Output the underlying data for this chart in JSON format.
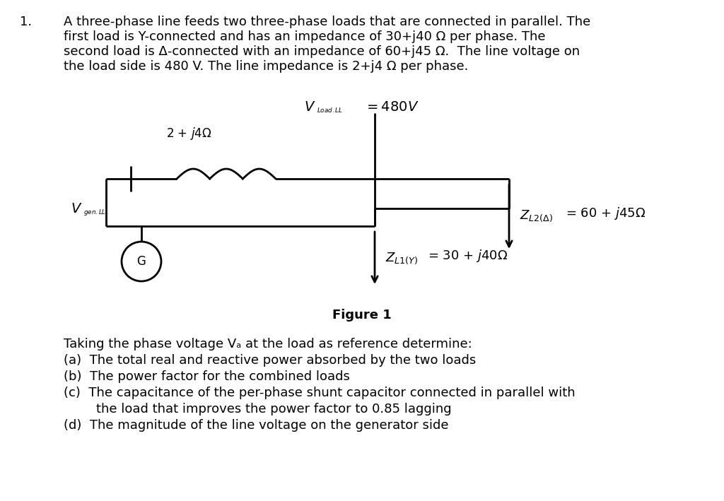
{
  "background_color": "#ffffff",
  "title_number": "1.",
  "para_line1": "A three-phase line feeds two three-phase loads that are connected in parallel. The",
  "para_line2": "first load is Y-connected and has an impedance of 30+j40 Ω per phase. The",
  "para_line3": "second load is Δ-connected with an impedance of 60+j45 Ω.  The line voltage on",
  "para_line4": "the load side is 480 V. The line impedance is 2+j4 Ω per phase.",
  "figure_label": "Figure 1",
  "v_load_text": "$V_{Load.LL}$",
  "v_load_val": "= 480$V$",
  "v_gen_text": "$V_{gen.LL}$",
  "impedance_text": "2 + $j$4Ω",
  "z_l2_text": "$Z_{L2(\\Delta)}$",
  "z_l2_val": "= 60 + $j$45Ω",
  "z_l1_text": "$Z_{L1(Y)}$",
  "z_l1_val": "= 30 + $j$40Ω",
  "g_label": "G",
  "q0": "Taking the phase voltage Vₐ at the load as reference determine:",
  "q1": "(a)  The total real and reactive power absorbed by the two loads",
  "q2": "(b)  The power factor for the combined loads",
  "q3": "(c)  The capacitance of the per-phase shunt capacitor connected in parallel with",
  "q4": "        the load that improves the power factor to 0.85 lagging",
  "q5": "(d)  The magnitude of the line voltage on the generator side",
  "font_size_para": 13,
  "font_size_circuit": 12,
  "font_size_figure": 13,
  "font_size_q": 13
}
